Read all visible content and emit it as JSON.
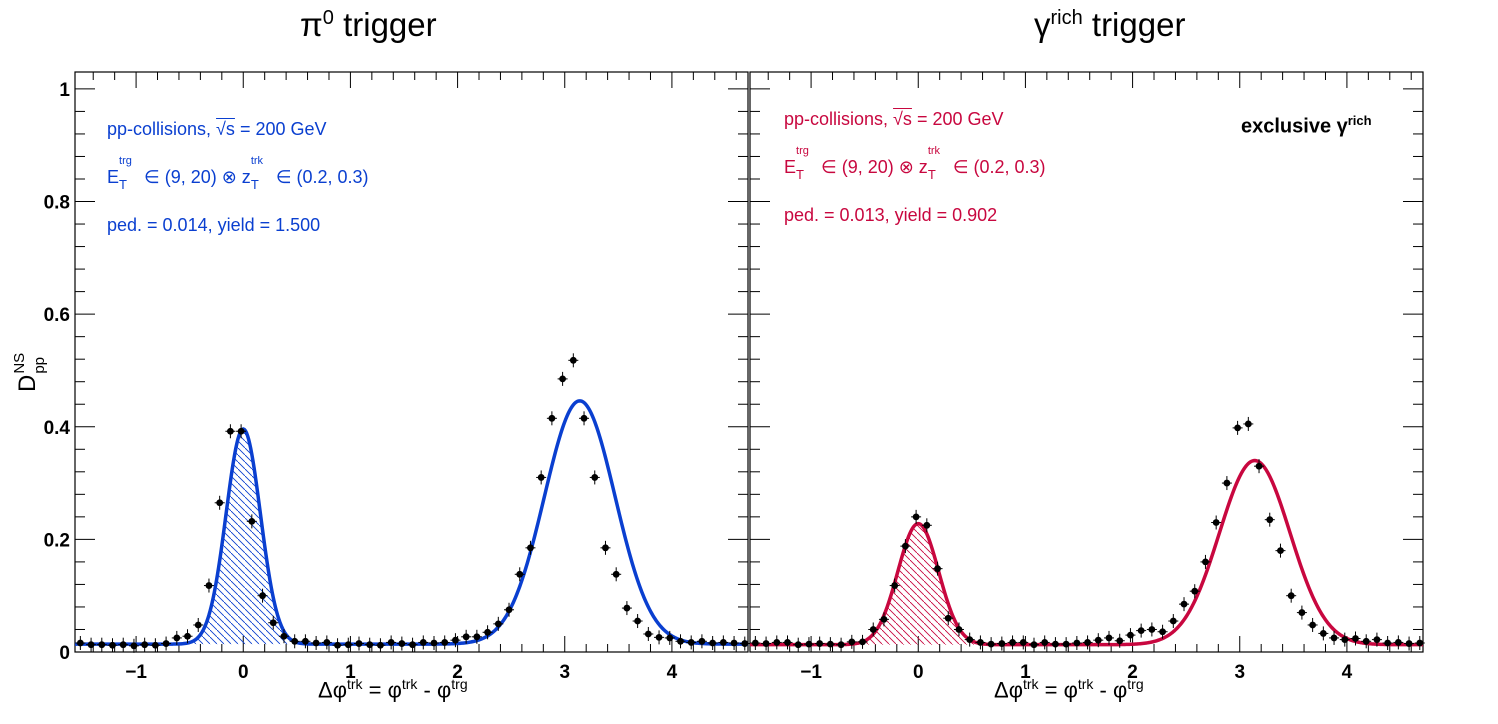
{
  "chart_data": {
    "type": "scatter",
    "y_axis": {
      "label_main": "D",
      "label_sup": "NS",
      "label_sub": "pp",
      "range": [
        0,
        1.03
      ],
      "ticks": [
        0,
        0.2,
        0.4,
        0.6,
        0.8,
        1
      ],
      "tick_labels": [
        "0",
        "0.2",
        "0.4",
        "0.6",
        "0.8",
        "1"
      ]
    },
    "panels": [
      {
        "title_main": "π",
        "title_sup": "0",
        "title_tail": " trigger",
        "x_axis": {
          "range": [
            -1.57,
            4.71
          ],
          "ticks": [
            -1,
            0,
            1,
            2,
            3,
            4
          ],
          "tick_labels": [
            "−1",
            "0",
            "1",
            "2",
            "3",
            "4"
          ],
          "label": {
            "a": "Δφ",
            "a_sup": "trk",
            "b": " = φ",
            "b_sup": "trk",
            "c": " - φ",
            "c_sup": "trg"
          }
        },
        "color": "#0a3fd0",
        "annotations": {
          "line1_a": "pp-collisions, ",
          "line1_sqrt": "√s",
          "line1_b": " = 200 GeV",
          "line2_E": "E",
          "line2_E_sup": "trg",
          "line2_E_sub": "T",
          "line2_mid": " ∈ (9, 20) ⊗ z",
          "line2_z_sup": "trk",
          "line2_z_sub": "T",
          "line2_end": " ∈ (0.2, 0.3)",
          "line3": "ped. = 0.014, yield = 1.500"
        },
        "fit": {
          "pedestal": 0.014,
          "ns_amp": 0.382,
          "ns_mu": 0.0,
          "ns_sigma": 0.16,
          "as_amp": 0.432,
          "as_mu": 3.14,
          "as_sigma": 0.33
        },
        "points": {
          "x": [
            -1.52,
            -1.42,
            -1.32,
            -1.22,
            -1.12,
            -1.02,
            -0.92,
            -0.82,
            -0.72,
            -0.62,
            -0.52,
            -0.42,
            -0.32,
            -0.22,
            -0.12,
            -0.02,
            0.08,
            0.18,
            0.28,
            0.38,
            0.48,
            0.58,
            0.68,
            0.78,
            0.88,
            0.98,
            1.08,
            1.18,
            1.28,
            1.38,
            1.48,
            1.58,
            1.68,
            1.78,
            1.88,
            1.98,
            2.08,
            2.18,
            2.28,
            2.38,
            2.48,
            2.58,
            2.68,
            2.78,
            2.88,
            2.98,
            3.08,
            3.18,
            3.28,
            3.38,
            3.48,
            3.58,
            3.68,
            3.78,
            3.88,
            3.98,
            4.08,
            4.18,
            4.28,
            4.38,
            4.48,
            4.58,
            4.68
          ],
          "y": [
            0.016,
            0.013,
            0.013,
            0.012,
            0.013,
            0.011,
            0.013,
            0.012,
            0.015,
            0.025,
            0.028,
            0.048,
            0.118,
            0.265,
            0.392,
            0.392,
            0.232,
            0.1,
            0.052,
            0.028,
            0.019,
            0.019,
            0.016,
            0.017,
            0.012,
            0.013,
            0.015,
            0.013,
            0.012,
            0.017,
            0.015,
            0.013,
            0.017,
            0.016,
            0.017,
            0.021,
            0.027,
            0.027,
            0.035,
            0.05,
            0.075,
            0.138,
            0.185,
            0.31,
            0.415,
            0.485,
            0.518,
            0.415,
            0.31,
            0.185,
            0.138,
            0.078,
            0.055,
            0.032,
            0.026,
            0.025,
            0.019,
            0.017,
            0.019,
            0.016,
            0.017,
            0.016,
            0.015
          ]
        }
      },
      {
        "title_main": "γ",
        "title_sup": "rich",
        "title_tail": " trigger",
        "x_axis": {
          "range": [
            -1.57,
            4.71
          ],
          "ticks": [
            -1,
            0,
            1,
            2,
            3,
            4
          ],
          "tick_labels": [
            "−1",
            "0",
            "1",
            "2",
            "3",
            "4"
          ],
          "label": {
            "a": "Δφ",
            "a_sup": "trk",
            "b": " = φ",
            "b_sup": "trk",
            "c": " - φ",
            "c_sup": "trg"
          }
        },
        "color": "#c8073f",
        "annotations": {
          "line1_a": "pp-collisions, ",
          "line1_sqrt": "√s",
          "line1_b": " = 200 GeV",
          "line2_E": "E",
          "line2_E_sup": "trg",
          "line2_E_sub": "T",
          "line2_mid": " ∈ (9, 20) ⊗ z",
          "line2_z_sup": "trk",
          "line2_z_sub": "T",
          "line2_end": " ∈ (0.2, 0.3)",
          "line3": "ped. = 0.013, yield = 0.902",
          "exclusive_main": "exclusive γ",
          "exclusive_sup": "rich"
        },
        "fit": {
          "pedestal": 0.013,
          "ns_amp": 0.215,
          "ns_mu": 0.0,
          "ns_sigma": 0.19,
          "as_amp": 0.327,
          "as_mu": 3.14,
          "as_sigma": 0.33
        },
        "points": {
          "x": [
            -1.52,
            -1.42,
            -1.32,
            -1.22,
            -1.12,
            -1.02,
            -0.92,
            -0.82,
            -0.72,
            -0.62,
            -0.52,
            -0.42,
            -0.32,
            -0.22,
            -0.12,
            -0.02,
            0.08,
            0.18,
            0.28,
            0.38,
            0.48,
            0.58,
            0.68,
            0.78,
            0.88,
            0.98,
            1.08,
            1.18,
            1.28,
            1.38,
            1.48,
            1.58,
            1.68,
            1.78,
            1.88,
            1.98,
            2.08,
            2.18,
            2.28,
            2.38,
            2.48,
            2.58,
            2.68,
            2.78,
            2.88,
            2.98,
            3.08,
            3.18,
            3.28,
            3.38,
            3.48,
            3.58,
            3.68,
            3.78,
            3.88,
            3.98,
            4.08,
            4.18,
            4.28,
            4.38,
            4.48,
            4.58,
            4.68
          ],
          "y": [
            0.016,
            0.015,
            0.017,
            0.017,
            0.013,
            0.014,
            0.015,
            0.014,
            0.013,
            0.018,
            0.018,
            0.04,
            0.058,
            0.118,
            0.188,
            0.24,
            0.225,
            0.148,
            0.06,
            0.04,
            0.022,
            0.017,
            0.014,
            0.015,
            0.017,
            0.017,
            0.013,
            0.017,
            0.014,
            0.014,
            0.016,
            0.017,
            0.021,
            0.025,
            0.02,
            0.03,
            0.038,
            0.04,
            0.036,
            0.055,
            0.085,
            0.108,
            0.16,
            0.23,
            0.3,
            0.398,
            0.405,
            0.33,
            0.235,
            0.18,
            0.1,
            0.07,
            0.048,
            0.033,
            0.025,
            0.022,
            0.024,
            0.019,
            0.022,
            0.016,
            0.017,
            0.015,
            0.016
          ]
        }
      }
    ]
  }
}
